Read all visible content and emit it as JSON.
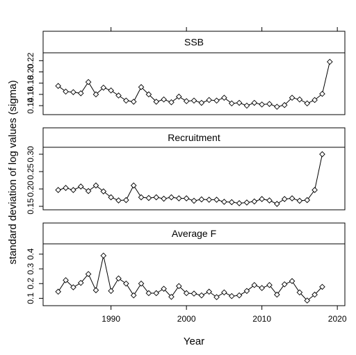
{
  "chart_data": {
    "type": "line",
    "ylabel": "standard deviation of log values (sigma)",
    "xlabel": "Year",
    "xlim": [
      1981,
      2021
    ],
    "x_ticks": [
      1990,
      2000,
      2010,
      2020
    ],
    "panels": [
      {
        "title": "SSB",
        "ylim": [
          0.124,
          0.234
        ],
        "y_ticks": [
          0.14,
          0.16,
          0.18,
          0.2,
          0.22
        ],
        "y_tick_labels": [
          "0.14",
          "0.16",
          "0.18",
          "0.20",
          "0.22"
        ],
        "series": [
          {
            "x": [
              1983,
              1984,
              1985,
              1986,
              1987,
              1988,
              1989,
              1990,
              1991,
              1992,
              1993,
              1994,
              1995,
              1996,
              1997,
              1998,
              1999,
              2000,
              2001,
              2002,
              2003,
              2004,
              2005,
              2006,
              2007,
              2008,
              2009,
              2010,
              2011,
              2012,
              2013,
              2014,
              2015,
              2016,
              2017,
              2018,
              2019
            ],
            "values": [
              0.175,
              0.165,
              0.164,
              0.162,
              0.182,
              0.16,
              0.172,
              0.167,
              0.158,
              0.149,
              0.147,
              0.173,
              0.16,
              0.147,
              0.151,
              0.146,
              0.156,
              0.148,
              0.149,
              0.145,
              0.15,
              0.149,
              0.154,
              0.144,
              0.145,
              0.14,
              0.145,
              0.142,
              0.143,
              0.138,
              0.141,
              0.154,
              0.151,
              0.144,
              0.15,
              0.161,
              0.218
            ]
          }
        ]
      },
      {
        "title": "Recruitment",
        "ylim": [
          0.14,
          0.32
        ],
        "y_ticks": [
          0.15,
          0.2,
          0.25,
          0.3
        ],
        "y_tick_labels": [
          "0.15",
          "0.20",
          "0.25",
          "0.30"
        ],
        "series": [
          {
            "x": [
              1983,
              1984,
              1985,
              1986,
              1987,
              1988,
              1989,
              1990,
              1991,
              1992,
              1993,
              1994,
              1995,
              1996,
              1997,
              1998,
              1999,
              2000,
              2001,
              2002,
              2003,
              2004,
              2005,
              2006,
              2007,
              2008,
              2009,
              2010,
              2011,
              2012,
              2013,
              2014,
              2015,
              2016,
              2017,
              2018
            ],
            "values": [
              0.197,
              0.203,
              0.197,
              0.207,
              0.194,
              0.21,
              0.193,
              0.176,
              0.167,
              0.168,
              0.21,
              0.176,
              0.174,
              0.176,
              0.172,
              0.176,
              0.173,
              0.173,
              0.166,
              0.17,
              0.169,
              0.169,
              0.163,
              0.162,
              0.159,
              0.161,
              0.164,
              0.171,
              0.167,
              0.157,
              0.171,
              0.173,
              0.166,
              0.168,
              0.197,
              0.3
            ]
          }
        ]
      },
      {
        "title": "Average F",
        "ylim": [
          0.05,
          0.47
        ],
        "y_ticks": [
          0.1,
          0.2,
          0.3,
          0.4
        ],
        "y_tick_labels": [
          "0.1",
          "0.2",
          "0.3",
          "0.4"
        ],
        "series": [
          {
            "x": [
              1983,
              1984,
              1985,
              1986,
              1987,
              1988,
              1989,
              1990,
              1991,
              1992,
              1993,
              1994,
              1995,
              1996,
              1997,
              1998,
              1999,
              2000,
              2001,
              2002,
              2003,
              2004,
              2005,
              2006,
              2007,
              2008,
              2009,
              2010,
              2011,
              2012,
              2013,
              2014,
              2015,
              2016,
              2017,
              2018
            ],
            "values": [
              0.145,
              0.223,
              0.175,
              0.205,
              0.265,
              0.155,
              0.39,
              0.15,
              0.235,
              0.2,
              0.12,
              0.2,
              0.135,
              0.135,
              0.165,
              0.11,
              0.183,
              0.135,
              0.132,
              0.12,
              0.145,
              0.108,
              0.14,
              0.115,
              0.12,
              0.15,
              0.19,
              0.17,
              0.19,
              0.125,
              0.195,
              0.217,
              0.14,
              0.085,
              0.125,
              0.178
            ]
          }
        ]
      }
    ]
  }
}
